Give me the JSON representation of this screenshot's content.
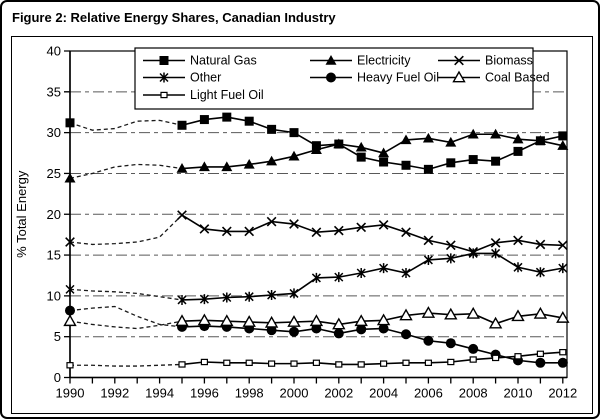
{
  "figure": {
    "title": "Figure 2: Relative Energy Shares, Canadian Industry"
  },
  "colors": {
    "line": "#000000",
    "background": "#ffffff",
    "grid": "#595959",
    "border": "#000000"
  },
  "chart_data": {
    "type": "line",
    "title": "Figure 2: Relative Energy Shares, Canadian Industry",
    "xlabel": "",
    "ylabel": "% Total Energy",
    "ylim": [
      0,
      40
    ],
    "ytick_step": 5,
    "ytick_labels": [
      "0",
      "5",
      "10",
      "15",
      "20",
      "25",
      "30",
      "35",
      "40"
    ],
    "xlim": [
      1990,
      2012
    ],
    "xtick_labels": [
      "1990",
      "1992",
      "1994",
      "1996",
      "1998",
      "2000",
      "2002",
      "2004",
      "2006",
      "2008",
      "2010",
      "2012"
    ],
    "grid": "horizontal-dashed",
    "legend_position": "top-inside",
    "style_note": "black-and-white; 1991-1994 segment dashed interpolation with no markers; markers at 1990 and 1995-2012",
    "years": [
      1990,
      1991,
      1992,
      1993,
      1994,
      1995,
      1996,
      1997,
      1998,
      1999,
      2000,
      2001,
      2002,
      2003,
      2004,
      2005,
      2006,
      2007,
      2008,
      2009,
      2010,
      2011,
      2012
    ],
    "dashed_until_year": 1995,
    "series": [
      {
        "name": "Natural Gas",
        "marker": "square-filled",
        "values": [
          31.2,
          30.3,
          30.5,
          31.4,
          31.5,
          30.9,
          31.6,
          31.9,
          31.4,
          30.4,
          30.0,
          28.4,
          28.6,
          27.0,
          26.4,
          26.0,
          25.5,
          26.3,
          26.7,
          26.5,
          27.7,
          29.0,
          29.6
        ]
      },
      {
        "name": "Electricity",
        "marker": "triangle-filled",
        "values": [
          24.4,
          25.0,
          25.8,
          26.1,
          26.0,
          25.6,
          25.8,
          25.8,
          26.1,
          26.5,
          27.1,
          27.9,
          28.6,
          28.2,
          27.5,
          29.1,
          29.3,
          28.8,
          29.8,
          29.8,
          29.2,
          29.0,
          28.4
        ]
      },
      {
        "name": "Biomass",
        "marker": "x",
        "values": [
          16.6,
          16.3,
          16.4,
          16.6,
          17.2,
          19.9,
          18.2,
          17.9,
          17.9,
          19.1,
          18.8,
          17.8,
          18.0,
          18.4,
          18.7,
          17.8,
          16.8,
          16.2,
          15.4,
          16.5,
          16.8,
          16.3,
          16.2
        ]
      },
      {
        "name": "Other",
        "marker": "star",
        "values": [
          10.8,
          10.6,
          10.5,
          10.3,
          9.9,
          9.5,
          9.6,
          9.8,
          9.9,
          10.1,
          10.3,
          12.2,
          12.3,
          12.8,
          13.4,
          12.8,
          14.4,
          14.6,
          15.2,
          15.2,
          13.5,
          12.9,
          13.4
        ]
      },
      {
        "name": "Heavy Fuel Oil",
        "marker": "circle-filled",
        "values": [
          8.2,
          8.5,
          8.7,
          7.5,
          6.5,
          6.2,
          6.3,
          6.2,
          6.0,
          5.8,
          5.6,
          6.0,
          5.4,
          5.9,
          6.0,
          5.3,
          4.5,
          4.2,
          3.5,
          2.8,
          2.1,
          1.8,
          1.8
        ]
      },
      {
        "name": "Coal Based",
        "marker": "triangle-open",
        "values": [
          6.9,
          6.5,
          6.2,
          6.0,
          6.4,
          6.9,
          7.0,
          6.9,
          6.8,
          6.7,
          6.8,
          6.9,
          6.5,
          6.9,
          7.0,
          7.6,
          7.9,
          7.7,
          7.8,
          6.6,
          7.5,
          7.8,
          7.3
        ]
      },
      {
        "name": "Light Fuel Oil",
        "marker": "square-open-small",
        "values": [
          1.5,
          1.5,
          1.4,
          1.4,
          1.5,
          1.6,
          1.9,
          1.8,
          1.8,
          1.7,
          1.7,
          1.8,
          1.6,
          1.6,
          1.7,
          1.8,
          1.8,
          1.9,
          2.2,
          2.4,
          2.6,
          2.9,
          3.1
        ]
      }
    ],
    "legend_layout": [
      [
        "Natural Gas",
        "Electricity",
        "Biomass"
      ],
      [
        "Other",
        "Heavy Fuel Oil",
        "Coal Based"
      ],
      [
        "Light Fuel Oil"
      ]
    ]
  }
}
